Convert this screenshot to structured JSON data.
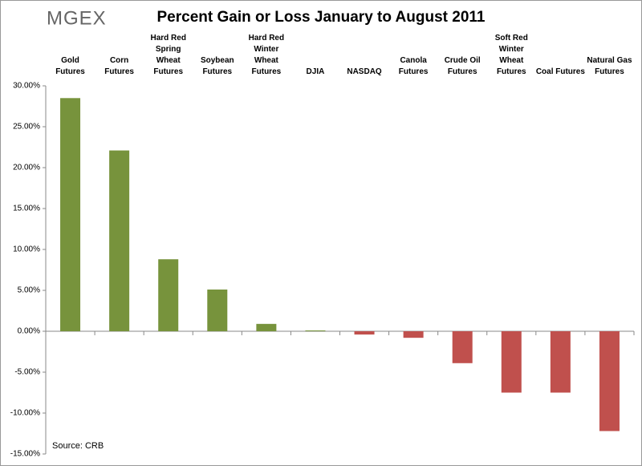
{
  "chart_data": {
    "type": "bar",
    "logo": "MGEX",
    "title": "Percent Gain or Loss January to August 2011",
    "source": "Source: CRB",
    "categories": [
      "Gold Futures",
      "Corn Futures",
      "Hard Red Spring Wheat Futures",
      "Soybean Futures",
      "Hard Red Winter Wheat Futures",
      "DJIA",
      "NASDAQ",
      "Canola Futures",
      "Crude Oil Futures",
      "Soft Red Winter Wheat Futures",
      "Coal Futures",
      "Natural Gas Futures"
    ],
    "values": [
      28.5,
      22.1,
      8.8,
      5.1,
      0.9,
      0.1,
      -0.4,
      -0.8,
      -3.9,
      -7.5,
      -7.5,
      -12.2
    ],
    "positive_color": "#77933c",
    "negative_color": "#c0504d",
    "ylim": [
      -15,
      30
    ],
    "yticks": [
      {
        "value": -15,
        "label": "-15.00%"
      },
      {
        "value": -10,
        "label": "-10.00%"
      },
      {
        "value": -5,
        "label": "-5.00%"
      },
      {
        "value": 0,
        "label": "0.00%"
      },
      {
        "value": 5,
        "label": "5.00%"
      },
      {
        "value": 10,
        "label": "10.00%"
      },
      {
        "value": 15,
        "label": "15.00%"
      },
      {
        "value": 20,
        "label": "20.00%"
      },
      {
        "value": 25,
        "label": "25.00%"
      },
      {
        "value": 30,
        "label": "30.00%"
      }
    ],
    "grid": false
  }
}
